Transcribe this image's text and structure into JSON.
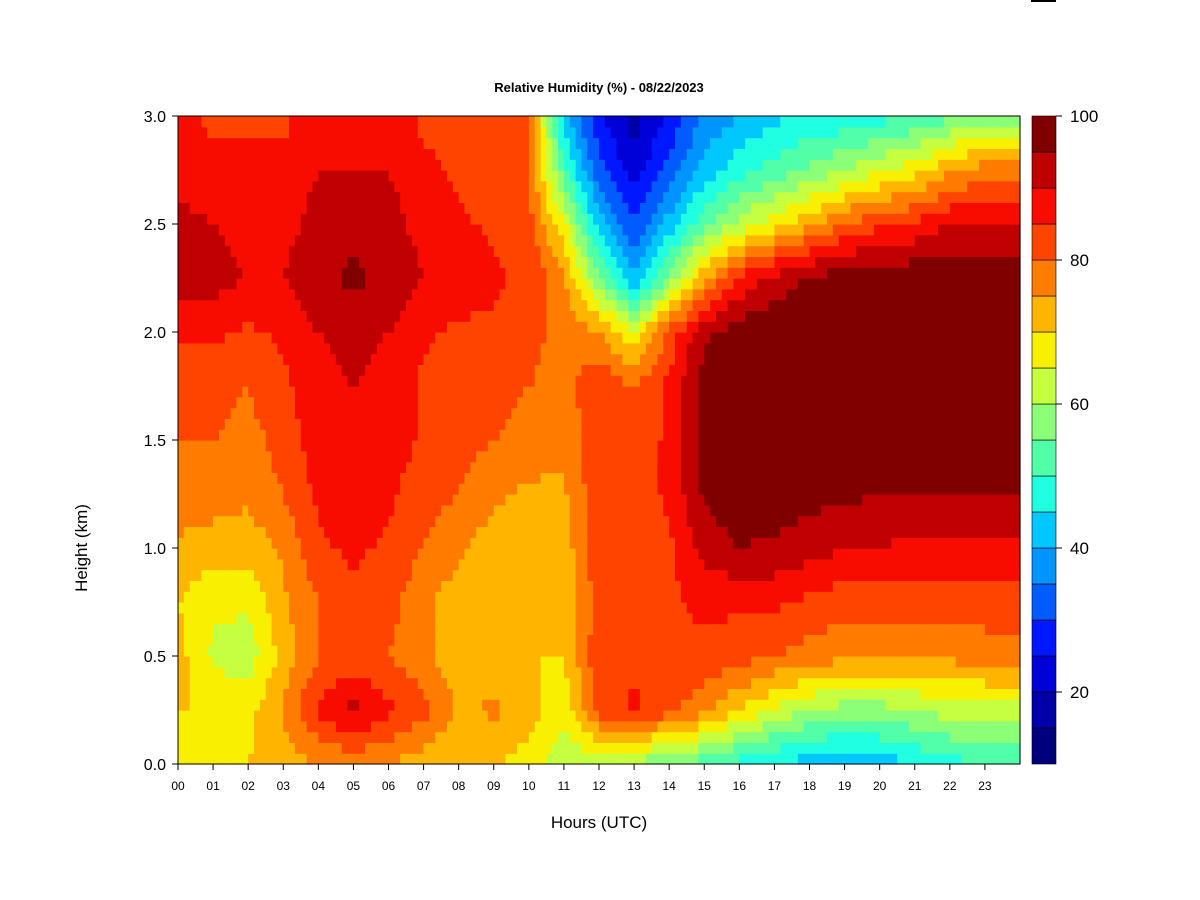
{
  "chart_data": {
    "type": "heatmap",
    "title": "Relative Humidity (%) - 08/22/2023",
    "xlabel": "Hours (UTC)",
    "ylabel": "Height (km)",
    "xlim": [
      0,
      24
    ],
    "ylim": [
      0,
      3
    ],
    "x_ticks": [
      "00",
      "01",
      "02",
      "03",
      "04",
      "05",
      "06",
      "07",
      "08",
      "09",
      "10",
      "11",
      "12",
      "13",
      "14",
      "15",
      "16",
      "17",
      "18",
      "19",
      "20",
      "21",
      "22",
      "23"
    ],
    "y_ticks": [
      "0.0",
      "0.5",
      "1.0",
      "1.5",
      "2.0",
      "2.5",
      "3.0"
    ],
    "colorbar": {
      "range": [
        10,
        100
      ],
      "ticks": [
        "20",
        "40",
        "60",
        "80",
        "100"
      ],
      "levels": [
        {
          "from": 10,
          "to": 15,
          "color": "#00007f"
        },
        {
          "from": 15,
          "to": 20,
          "color": "#0000a8"
        },
        {
          "from": 20,
          "to": 25,
          "color": "#0000d8"
        },
        {
          "from": 25,
          "to": 30,
          "color": "#0018ff"
        },
        {
          "from": 30,
          "to": 35,
          "color": "#005cff"
        },
        {
          "from": 35,
          "to": 40,
          "color": "#0094ff"
        },
        {
          "from": 40,
          "to": 45,
          "color": "#00c8ff"
        },
        {
          "from": 45,
          "to": 50,
          "color": "#20ffe0"
        },
        {
          "from": 50,
          "to": 55,
          "color": "#50ffa8"
        },
        {
          "from": 55,
          "to": 60,
          "color": "#8cff78"
        },
        {
          "from": 60,
          "to": 65,
          "color": "#c4ff40"
        },
        {
          "from": 65,
          "to": 70,
          "color": "#f8f000"
        },
        {
          "from": 70,
          "to": 75,
          "color": "#ffb400"
        },
        {
          "from": 75,
          "to": 80,
          "color": "#ff7c00"
        },
        {
          "from": 80,
          "to": 85,
          "color": "#ff4400"
        },
        {
          "from": 85,
          "to": 90,
          "color": "#f80c00"
        },
        {
          "from": 90,
          "to": 95,
          "color": "#c00000"
        },
        {
          "from": 95,
          "to": 100,
          "color": "#800000"
        }
      ]
    },
    "heights_km": [
      0.0,
      0.25,
      0.5,
      0.75,
      1.0,
      1.25,
      1.5,
      1.75,
      2.0,
      2.25,
      2.5,
      2.75,
      3.0
    ],
    "hours": [
      0,
      1,
      2,
      3,
      4,
      5,
      6,
      7,
      8,
      9,
      10,
      11,
      12,
      13,
      14,
      15,
      16,
      17,
      18,
      19,
      20,
      21,
      22,
      23,
      24
    ],
    "rh_grid": [
      [
        68,
        70,
        70,
        72,
        75,
        76,
        75,
        72,
        70,
        70,
        68,
        62,
        60,
        58,
        55,
        52,
        48,
        45,
        42,
        40,
        42,
        45,
        48,
        50,
        50
      ],
      [
        70,
        70,
        68,
        76,
        86,
        92,
        86,
        82,
        74,
        76,
        72,
        66,
        82,
        86,
        82,
        76,
        70,
        64,
        60,
        58,
        58,
        60,
        62,
        62,
        62
      ],
      [
        72,
        64,
        62,
        72,
        80,
        82,
        80,
        76,
        72,
        70,
        70,
        70,
        84,
        84,
        84,
        84,
        82,
        80,
        78,
        76,
        76,
        76,
        76,
        78,
        78
      ],
      [
        70,
        66,
        66,
        74,
        80,
        84,
        82,
        76,
        72,
        70,
        70,
        70,
        82,
        80,
        84,
        86,
        86,
        86,
        84,
        82,
        82,
        82,
        82,
        82,
        82
      ],
      [
        74,
        72,
        72,
        76,
        84,
        86,
        84,
        80,
        76,
        72,
        72,
        72,
        84,
        80,
        84,
        92,
        95,
        94,
        92,
        90,
        90,
        88,
        88,
        88,
        88
      ],
      [
        78,
        78,
        76,
        80,
        86,
        88,
        86,
        82,
        80,
        76,
        74,
        74,
        84,
        82,
        86,
        96,
        98,
        98,
        97,
        96,
        95,
        95,
        95,
        95,
        95
      ],
      [
        80,
        80,
        78,
        82,
        88,
        90,
        88,
        84,
        82,
        80,
        78,
        76,
        84,
        82,
        86,
        98,
        99,
        99,
        99,
        99,
        99,
        99,
        99,
        99,
        99
      ],
      [
        82,
        82,
        80,
        84,
        88,
        90,
        88,
        84,
        82,
        82,
        80,
        78,
        84,
        80,
        86,
        97,
        99,
        99,
        99,
        99,
        99,
        99,
        99,
        99,
        99
      ],
      [
        86,
        86,
        84,
        86,
        90,
        92,
        90,
        86,
        84,
        84,
        82,
        78,
        76,
        66,
        82,
        94,
        98,
        99,
        99,
        99,
        99,
        99,
        99,
        99,
        99
      ],
      [
        94,
        92,
        90,
        90,
        94,
        96,
        94,
        90,
        88,
        86,
        84,
        76,
        56,
        40,
        56,
        74,
        86,
        92,
        96,
        98,
        99,
        99,
        99,
        98,
        98
      ],
      [
        92,
        90,
        88,
        88,
        92,
        94,
        92,
        88,
        86,
        84,
        82,
        66,
        42,
        30,
        42,
        54,
        62,
        68,
        74,
        80,
        84,
        86,
        90,
        90,
        90
      ],
      [
        88,
        86,
        86,
        86,
        90,
        90,
        90,
        86,
        84,
        82,
        80,
        52,
        32,
        22,
        32,
        42,
        48,
        52,
        56,
        60,
        64,
        68,
        74,
        78,
        78
      ],
      [
        86,
        84,
        84,
        84,
        88,
        88,
        88,
        84,
        84,
        82,
        80,
        42,
        26,
        18,
        26,
        36,
        40,
        44,
        46,
        46,
        48,
        50,
        54,
        58,
        58
      ]
    ]
  }
}
